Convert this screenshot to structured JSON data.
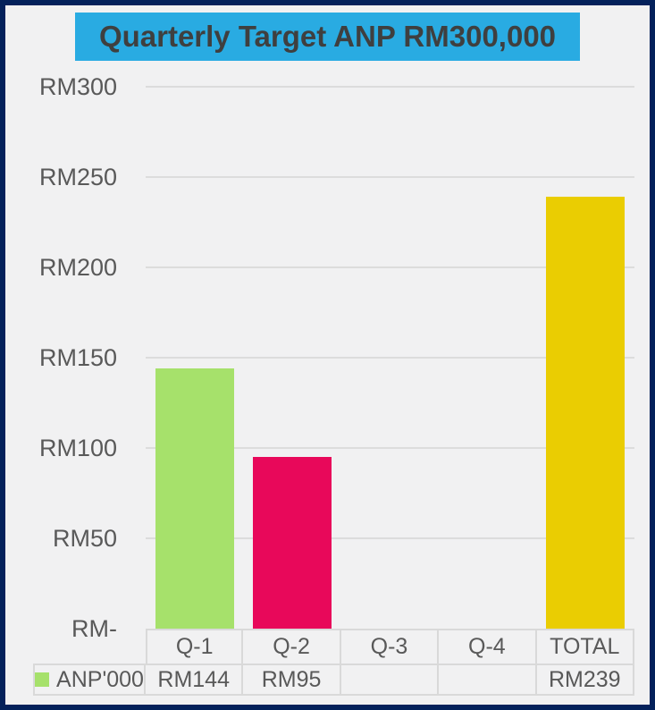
{
  "title": "Quarterly Target ANP RM300,000",
  "chart_data": {
    "type": "bar",
    "title": "Quarterly Target ANP RM300,000",
    "categories": [
      "Q-1",
      "Q-2",
      "Q-3",
      "Q-4",
      "TOTAL"
    ],
    "series": [
      {
        "name": "ANP'000",
        "values": [
          144,
          95,
          null,
          null,
          239
        ]
      }
    ],
    "value_labels": [
      "RM144",
      "RM95",
      "",
      "",
      "RM239"
    ],
    "bar_colors": [
      "#a6e16b",
      "#e8085a",
      null,
      null,
      "#eacd02"
    ],
    "y_ticks": [
      {
        "label": "RM300",
        "value": 300
      },
      {
        "label": "RM250",
        "value": 250
      },
      {
        "label": "RM200",
        "value": 200
      },
      {
        "label": "RM150",
        "value": 150
      },
      {
        "label": "RM100",
        "value": 100
      },
      {
        "label": "RM50",
        "value": 50
      },
      {
        "label": "RM-",
        "value": 0
      }
    ],
    "ylim": [
      0,
      300
    ],
    "currency_prefix": "RM",
    "grid": true,
    "legend_position": "bottom-table-row"
  },
  "legend": {
    "label": "ANP'000",
    "marker_color": "#a6e16b"
  },
  "colors": {
    "frame_border": "#04215b",
    "background": "#f1f1f2",
    "title_background": "#29abe2",
    "title_text": "#3f3f3f",
    "gridline": "#dcdcdc",
    "axis_text": "#595959",
    "table_border": "#d9d9d9",
    "bar_green": "#a6e16b",
    "bar_pink": "#e8085a",
    "bar_yellow": "#eacd02"
  }
}
